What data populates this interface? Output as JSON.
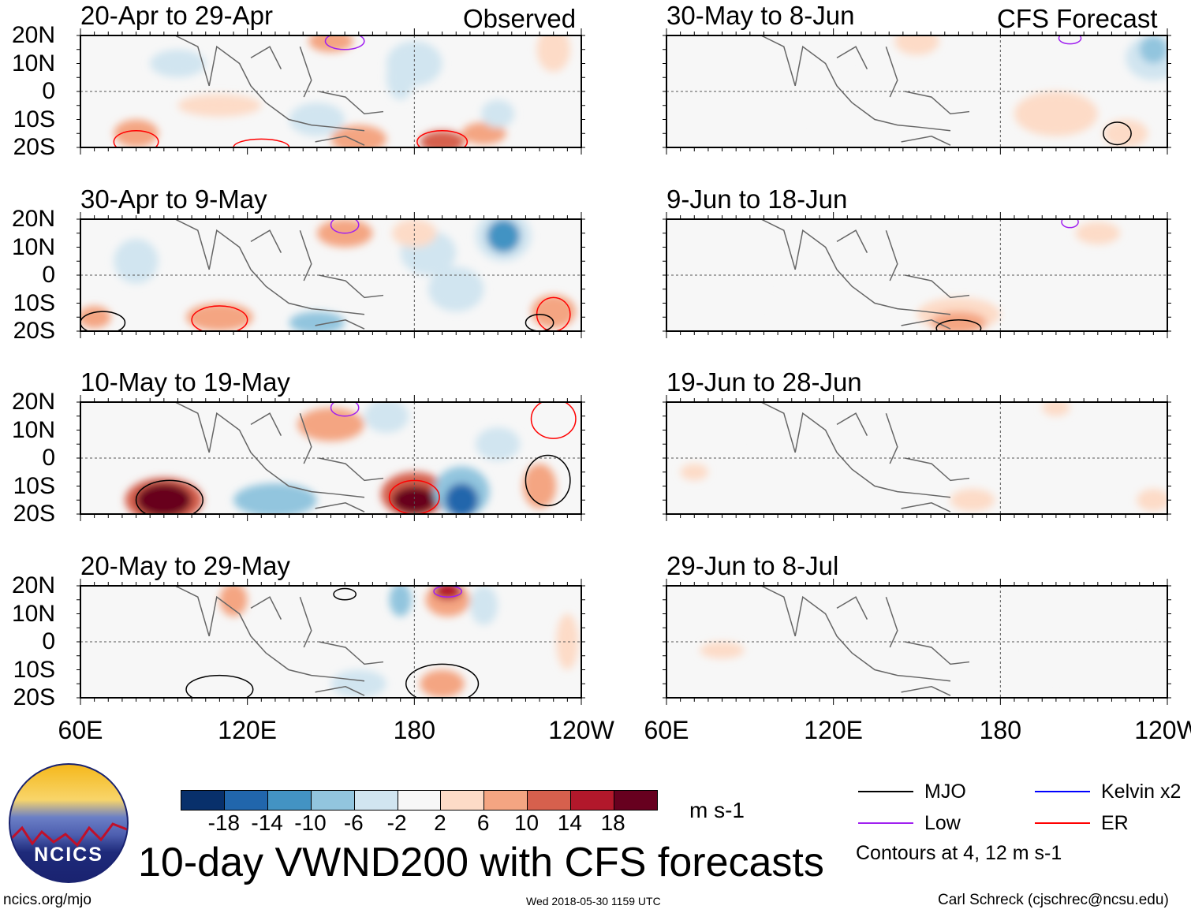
{
  "title": "10-day VWND200 with CFS forecasts",
  "observed_label": "Observed",
  "forecast_label": "CFS Forecast",
  "url": "ncics.org/mjo",
  "timestamp": "Wed 2018-05-30 1159 UTC",
  "credit": "Carl Schreck (cjschrec@ncsu.edu)",
  "logo_text": "NCICS",
  "units": "m s-1",
  "legend": {
    "items": [
      {
        "label": "MJO",
        "color": "#000000"
      },
      {
        "label": "Low",
        "color": "#a020f0"
      },
      {
        "label": "Kelvin x2",
        "color": "#0000ff"
      },
      {
        "label": "ER",
        "color": "#ff0000"
      }
    ],
    "note": "Contours at 4, 12 m s-1"
  },
  "colorbar": {
    "ticks": [
      "-18",
      "-14",
      "-10",
      "-6",
      "-2",
      "2",
      "6",
      "10",
      "14",
      "18"
    ],
    "colors": [
      "#08306b",
      "#2166ac",
      "#4393c3",
      "#92c5de",
      "#d1e5f0",
      "#f7f7f7",
      "#fddbc7",
      "#f4a582",
      "#d6604d",
      "#b2182b",
      "#67001f"
    ]
  },
  "chart_data": {
    "type": "heatmap",
    "variable": "200-hPa meridional wind anomaly",
    "lat_labels": [
      "20N",
      "10N",
      "0",
      "10S",
      "20S"
    ],
    "lon_labels": [
      "60E",
      "120E",
      "180",
      "120W"
    ],
    "lon_range": [
      60,
      240
    ],
    "lat_range": [
      -20,
      20
    ],
    "panels": [
      {
        "title": "20-Apr to 29-Apr",
        "col": 0,
        "features": [
          [
            160,
            -17,
            8,
            10,
            5
          ],
          [
            190,
            -18,
            12,
            8,
            4
          ],
          [
            205,
            -15,
            6,
            8,
            4
          ],
          [
            80,
            -15,
            6,
            8,
            5
          ],
          [
            175,
            5,
            -6,
            5,
            8
          ],
          [
            180,
            10,
            -4,
            10,
            8
          ],
          [
            150,
            18,
            6,
            8,
            4
          ],
          [
            110,
            -5,
            4,
            15,
            4
          ],
          [
            95,
            10,
            -3,
            10,
            5
          ],
          [
            230,
            15,
            4,
            6,
            8
          ],
          [
            145,
            -10,
            -4,
            10,
            6
          ],
          [
            210,
            -8,
            -3,
            6,
            5
          ]
        ],
        "contours": [
          [
            "er",
            80,
            -18,
            8,
            4
          ],
          [
            "er",
            190,
            -18,
            9,
            4
          ],
          [
            "low",
            155,
            18,
            7,
            3
          ],
          [
            "er",
            125,
            -20,
            10,
            3
          ]
        ]
      },
      {
        "title": "30-Apr to 9-May",
        "col": 0,
        "features": [
          [
            212,
            14,
            -6,
            10,
            9
          ],
          [
            212,
            14,
            -14,
            6,
            6
          ],
          [
            155,
            15,
            8,
            10,
            5
          ],
          [
            110,
            -15,
            8,
            12,
            5
          ],
          [
            145,
            -17,
            -8,
            10,
            4
          ],
          [
            230,
            -13,
            6,
            8,
            6
          ],
          [
            185,
            8,
            -5,
            10,
            8
          ],
          [
            195,
            -5,
            -4,
            10,
            8
          ],
          [
            180,
            15,
            4,
            8,
            5
          ],
          [
            80,
            5,
            -3,
            8,
            8
          ],
          [
            65,
            -15,
            6,
            6,
            4
          ]
        ],
        "contours": [
          [
            "er",
            110,
            -16,
            10,
            5
          ],
          [
            "mjo",
            68,
            -17,
            8,
            4
          ],
          [
            "er",
            230,
            -14,
            6,
            6
          ],
          [
            "mjo",
            225,
            -17,
            5,
            3
          ],
          [
            "low",
            155,
            18,
            5,
            3
          ]
        ]
      },
      {
        "title": "10-May to 19-May",
        "col": 0,
        "features": [
          [
            90,
            -15,
            10,
            14,
            8
          ],
          [
            90,
            -15,
            18,
            10,
            6
          ],
          [
            180,
            -13,
            10,
            12,
            8
          ],
          [
            180,
            -15,
            18,
            8,
            5
          ],
          [
            197,
            -12,
            -8,
            10,
            9
          ],
          [
            197,
            -15,
            -18,
            6,
            6
          ],
          [
            130,
            -15,
            -8,
            15,
            6
          ],
          [
            150,
            12,
            8,
            12,
            6
          ],
          [
            225,
            -10,
            8,
            6,
            8
          ],
          [
            210,
            5,
            -4,
            8,
            6
          ],
          [
            170,
            15,
            -4,
            8,
            6
          ]
        ],
        "contours": [
          [
            "mjo",
            92,
            -15,
            12,
            7
          ],
          [
            "er",
            180,
            -14,
            9,
            6
          ],
          [
            "mjo",
            228,
            -8,
            8,
            9
          ],
          [
            "low",
            155,
            18,
            5,
            3
          ],
          [
            "er",
            230,
            14,
            8,
            7
          ]
        ]
      },
      {
        "title": "20-May to 29-May",
        "col": 0,
        "features": [
          [
            192,
            15,
            6,
            8,
            6
          ],
          [
            192,
            18,
            14,
            5,
            3
          ],
          [
            175,
            15,
            -8,
            4,
            6
          ],
          [
            205,
            13,
            -4,
            5,
            7
          ],
          [
            115,
            15,
            6,
            5,
            6
          ],
          [
            190,
            -15,
            8,
            8,
            5
          ],
          [
            160,
            -15,
            -3,
            10,
            5
          ],
          [
            235,
            0,
            4,
            4,
            10
          ],
          [
            135,
            5,
            -2,
            10,
            5
          ]
        ],
        "contours": [
          [
            "mjo",
            110,
            -17,
            12,
            5
          ],
          [
            "mjo",
            190,
            -15,
            13,
            7
          ],
          [
            "low",
            192,
            18,
            5,
            2
          ],
          [
            "mjo",
            155,
            17,
            4,
            2
          ]
        ]
      },
      {
        "title": "30-May to 8-Jun",
        "col": 1,
        "features": [
          [
            235,
            12,
            -4,
            10,
            8
          ],
          [
            235,
            15,
            -10,
            5,
            5
          ],
          [
            200,
            -8,
            4,
            15,
            8
          ],
          [
            150,
            18,
            4,
            8,
            5
          ],
          [
            120,
            -2,
            -2,
            40,
            8
          ],
          [
            225,
            -15,
            4,
            8,
            5
          ]
        ],
        "contours": [
          [
            "mjo",
            222,
            -15,
            5,
            4
          ],
          [
            "low",
            205,
            19,
            4,
            2
          ]
        ]
      },
      {
        "title": "9-Jun to 18-Jun",
        "col": 1,
        "features": [
          [
            165,
            -14,
            4,
            15,
            6
          ],
          [
            165,
            -17,
            8,
            10,
            4
          ],
          [
            130,
            5,
            -2,
            30,
            8
          ],
          [
            80,
            -5,
            -2,
            15,
            12
          ],
          [
            215,
            15,
            3,
            8,
            4
          ]
        ],
        "contours": [
          [
            "mjo",
            165,
            -19,
            8,
            3
          ],
          [
            "low",
            205,
            19,
            3,
            2
          ]
        ]
      },
      {
        "title": "19-Jun to 28-Jun",
        "col": 1,
        "features": [
          [
            220,
            -3,
            -2,
            15,
            6
          ],
          [
            120,
            0,
            -2,
            30,
            8
          ],
          [
            170,
            -15,
            3,
            8,
            4
          ],
          [
            235,
            -15,
            4,
            6,
            4
          ],
          [
            70,
            -5,
            3,
            5,
            3
          ],
          [
            200,
            18,
            2,
            5,
            3
          ]
        ],
        "contours": []
      },
      {
        "title": "29-Jun to 8-Jul",
        "col": 1,
        "features": [
          [
            200,
            -3,
            -2,
            10,
            10
          ],
          [
            230,
            -5,
            -2,
            10,
            6
          ],
          [
            140,
            0,
            -2,
            20,
            6
          ],
          [
            80,
            -3,
            3,
            8,
            3
          ],
          [
            170,
            -12,
            -2,
            10,
            5
          ]
        ],
        "contours": []
      }
    ]
  }
}
